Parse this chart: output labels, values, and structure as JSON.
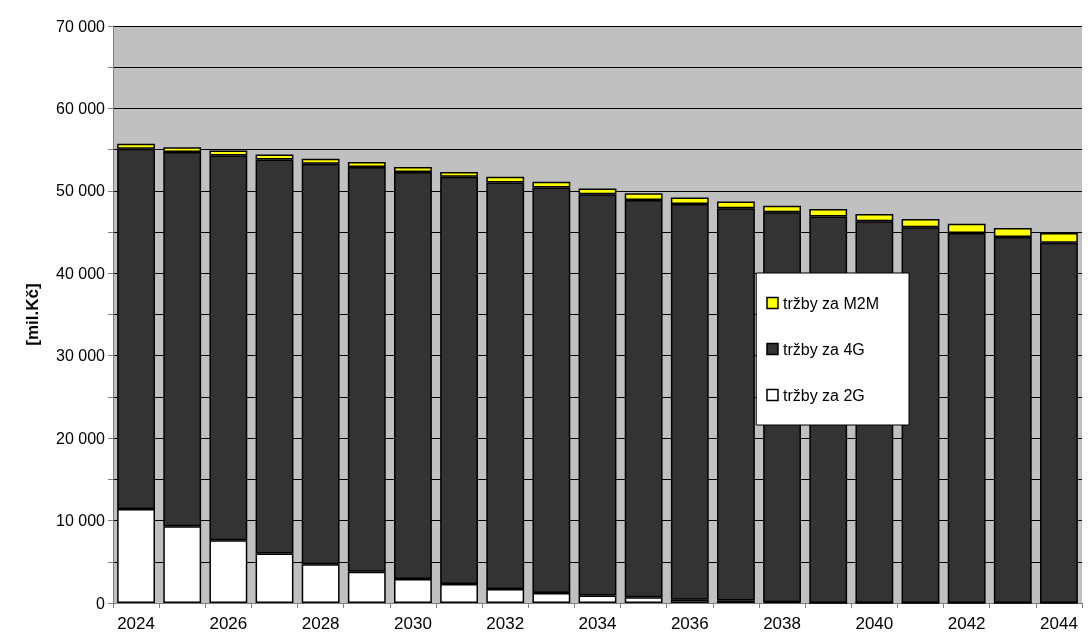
{
  "chart_data": {
    "type": "bar",
    "ylabel": "[mil.Kč]",
    "stacked": true,
    "grid": "y",
    "legend": "right",
    "categories": [
      "2024",
      null,
      "2026",
      null,
      "2028",
      null,
      "2030",
      null,
      "2032",
      null,
      "2034",
      null,
      "2036",
      null,
      "2038",
      null,
      "2040",
      null,
      "2042",
      null,
      "2044"
    ],
    "series": [
      {
        "name": "tržby za 2G",
        "color": "#ffffff",
        "values": [
          11400,
          9300,
          7600,
          6000,
          4700,
          3800,
          2900,
          2300,
          1700,
          1200,
          900,
          700,
          400,
          300,
          100,
          0,
          0,
          0,
          0,
          0,
          0
        ]
      },
      {
        "name": "tržby za 4G",
        "color": "#333333",
        "values": [
          43700,
          45400,
          46700,
          47800,
          48600,
          49100,
          49400,
          49400,
          49300,
          49200,
          48700,
          48200,
          48000,
          47600,
          47300,
          46900,
          46300,
          45600,
          44900,
          44400,
          43700
        ]
      },
      {
        "name": "tržby za M2M",
        "color": "#ffff00",
        "values": [
          600,
          600,
          600,
          600,
          600,
          600,
          600,
          600,
          700,
          700,
          700,
          800,
          800,
          800,
          800,
          900,
          900,
          1000,
          1100,
          1100,
          1200
        ]
      }
    ],
    "ylim": [
      0,
      70000
    ],
    "yticks": [
      {
        "value": 0,
        "label": "0"
      },
      {
        "value": 5000,
        "label": null
      },
      {
        "value": 10000,
        "label": "10 000"
      },
      {
        "value": 15000,
        "label": null
      },
      {
        "value": 20000,
        "label": "20 000"
      },
      {
        "value": 25000,
        "label": null
      },
      {
        "value": 30000,
        "label": "30 000"
      },
      {
        "value": 35000,
        "label": null
      },
      {
        "value": 40000,
        "label": "40 000"
      },
      {
        "value": 45000,
        "label": null
      },
      {
        "value": 50000,
        "label": "50 000"
      },
      {
        "value": 55000,
        "label": null
      },
      {
        "value": 60000,
        "label": "60 000"
      },
      {
        "value": 65000,
        "label": null
      },
      {
        "value": 70000,
        "label": "70 000"
      }
    ]
  }
}
